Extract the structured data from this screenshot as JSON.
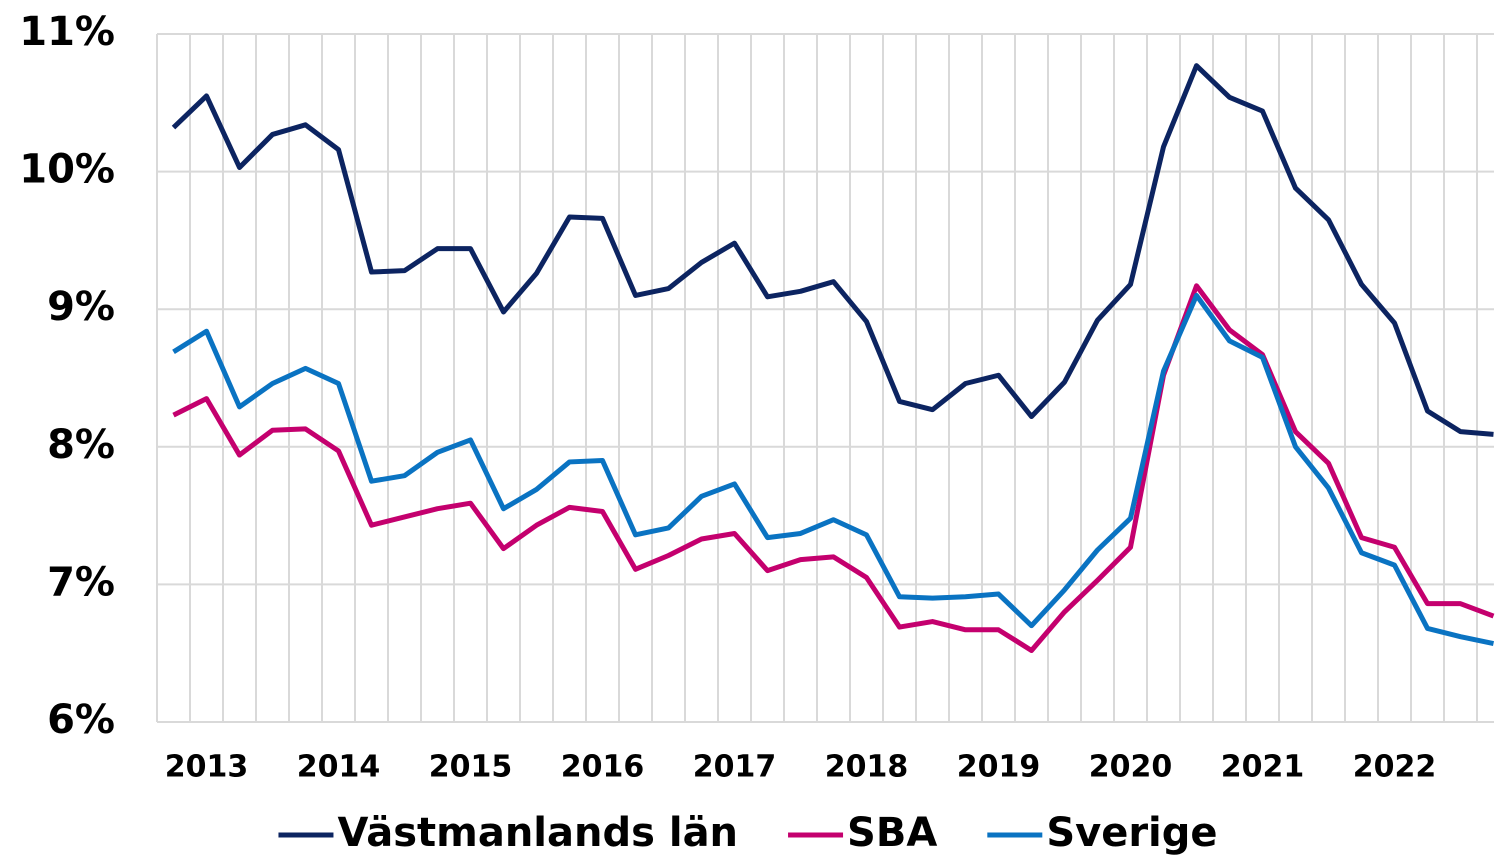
{
  "chart_data": {
    "type": "line",
    "categories": [
      null,
      "2013",
      null,
      null,
      null,
      "2014",
      null,
      null,
      null,
      "2015",
      null,
      null,
      null,
      "2016",
      null,
      null,
      null,
      "2017",
      null,
      null,
      null,
      "2018",
      null,
      null,
      null,
      "2019",
      null,
      null,
      null,
      "2020",
      null,
      null,
      null,
      "2021",
      null,
      null,
      null,
      "2022",
      null,
      null,
      null
    ],
    "series": [
      {
        "name": "Västmanlands län",
        "color": "#0c2461",
        "values": [
          10.32,
          10.55,
          10.03,
          10.27,
          10.34,
          10.16,
          9.27,
          9.28,
          9.44,
          9.44,
          8.98,
          9.26,
          9.67,
          9.66,
          9.1,
          9.15,
          9.34,
          9.48,
          9.09,
          9.13,
          9.2,
          8.91,
          8.33,
          8.27,
          8.46,
          8.52,
          8.22,
          8.47,
          8.92,
          9.18,
          10.18,
          10.77,
          10.54,
          10.44,
          9.88,
          9.65,
          9.18,
          8.9,
          8.26,
          8.11,
          8.09
        ]
      },
      {
        "name": "SBA",
        "color": "#c4006e",
        "values": [
          8.23,
          8.35,
          7.94,
          8.12,
          8.13,
          7.97,
          7.43,
          7.49,
          7.55,
          7.59,
          7.26,
          7.43,
          7.56,
          7.53,
          7.11,
          7.21,
          7.33,
          7.37,
          7.1,
          7.18,
          7.2,
          7.05,
          6.69,
          6.73,
          6.67,
          6.67,
          6.52,
          6.8,
          7.03,
          7.27,
          8.52,
          9.17,
          8.85,
          8.67,
          8.11,
          7.88,
          7.34,
          7.27,
          6.86,
          6.86,
          6.77
        ]
      },
      {
        "name": "Sverige",
        "color": "#0a73c2",
        "values": [
          8.69,
          8.84,
          8.29,
          8.46,
          8.57,
          8.46,
          7.75,
          7.79,
          7.96,
          8.05,
          7.55,
          7.69,
          7.89,
          7.9,
          7.36,
          7.41,
          7.64,
          7.73,
          7.34,
          7.37,
          7.47,
          7.36,
          6.91,
          6.9,
          6.91,
          6.93,
          6.7,
          6.96,
          7.25,
          7.48,
          8.55,
          9.1,
          8.77,
          8.65,
          8.0,
          7.7,
          7.23,
          7.14,
          6.68,
          6.62,
          6.57
        ]
      }
    ],
    "ylim": [
      6,
      11
    ],
    "yticks": [
      {
        "value": 6,
        "label": "6%"
      },
      {
        "value": 7,
        "label": "7%"
      },
      {
        "value": 8,
        "label": "8%"
      },
      {
        "value": 9,
        "label": "9%"
      },
      {
        "value": 10,
        "label": "10%"
      },
      {
        "value": 11,
        "label": "11%"
      }
    ],
    "grid": true,
    "legend": "bottom"
  }
}
